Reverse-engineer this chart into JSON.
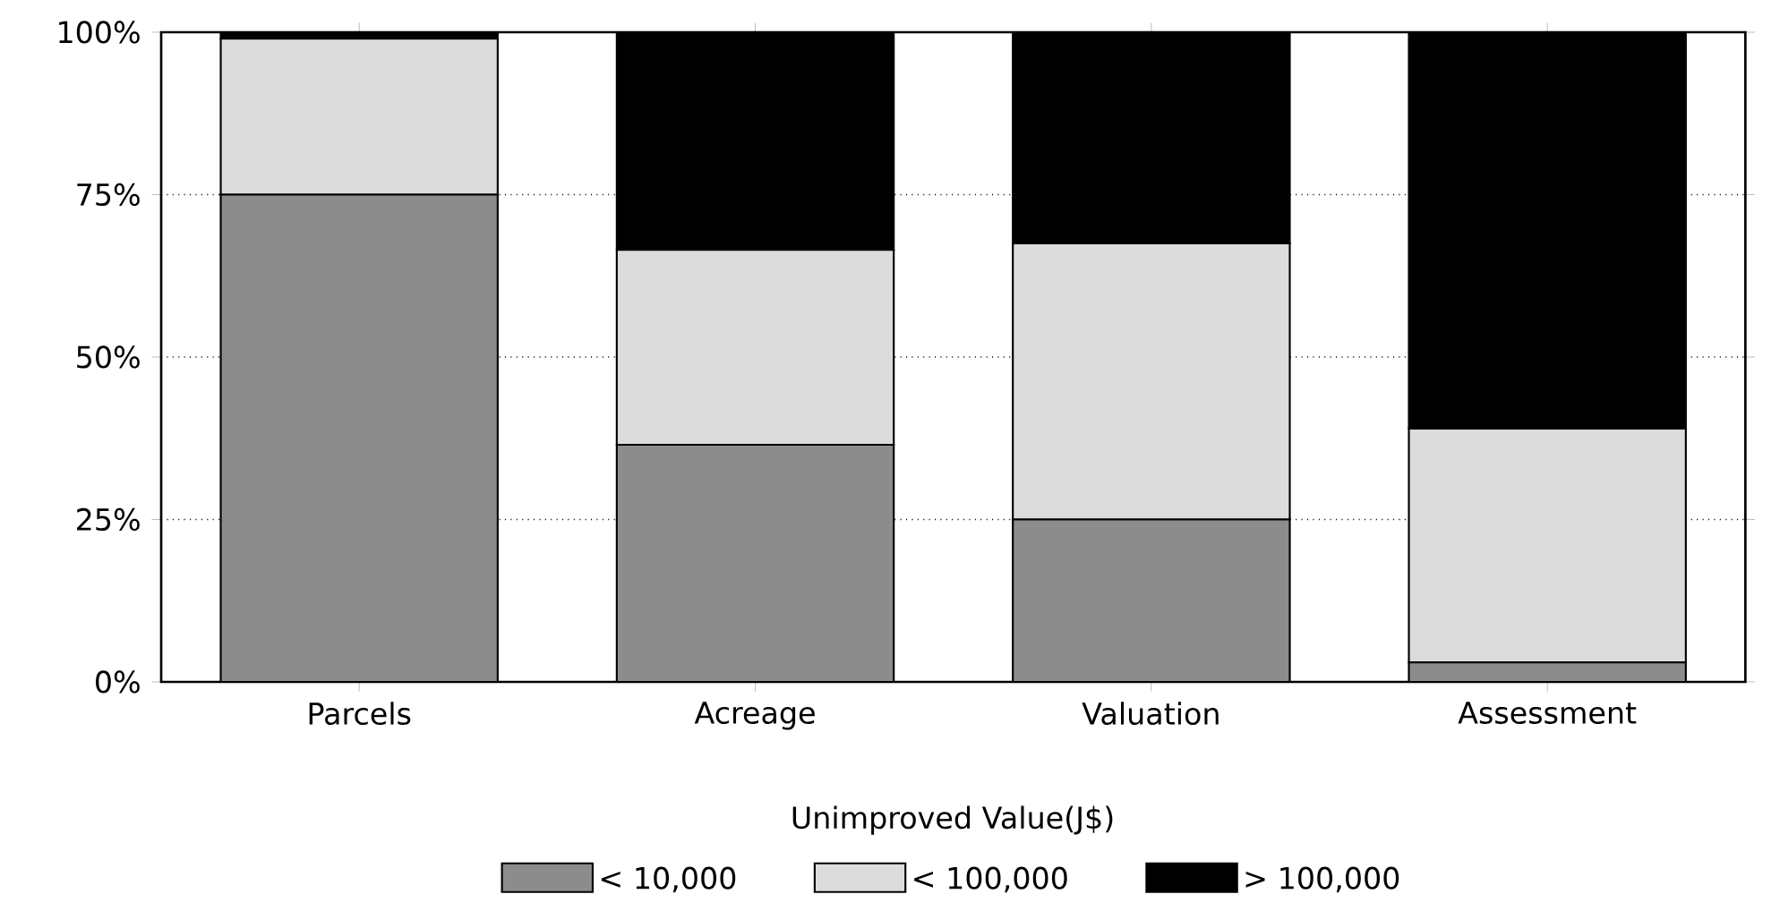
{
  "chart_data": {
    "type": "bar",
    "stacked": true,
    "categories": [
      "Parcels",
      "Acreage",
      "Valuation",
      "Assessment"
    ],
    "series": [
      {
        "name": "< 10,000",
        "color": "#8c8c8c",
        "values": [
          75,
          36.5,
          25,
          3
        ]
      },
      {
        "name": "< 100,000",
        "color": "#dcdcdc",
        "values": [
          24,
          30,
          42.5,
          36
        ]
      },
      {
        "name": "> 100,000",
        "color": "#000000",
        "values": [
          1,
          33.5,
          32.5,
          61
        ]
      }
    ],
    "ylim": [
      0,
      100
    ],
    "yticks": [
      {
        "value": 0,
        "label": "0%"
      },
      {
        "value": 25,
        "label": "25%"
      },
      {
        "value": 50,
        "label": "50%"
      },
      {
        "value": 75,
        "label": "75%"
      },
      {
        "value": 100,
        "label": "100%"
      }
    ],
    "grid": "y",
    "legend": "bottom",
    "legend_title": "Unimproved Value(J$)"
  }
}
